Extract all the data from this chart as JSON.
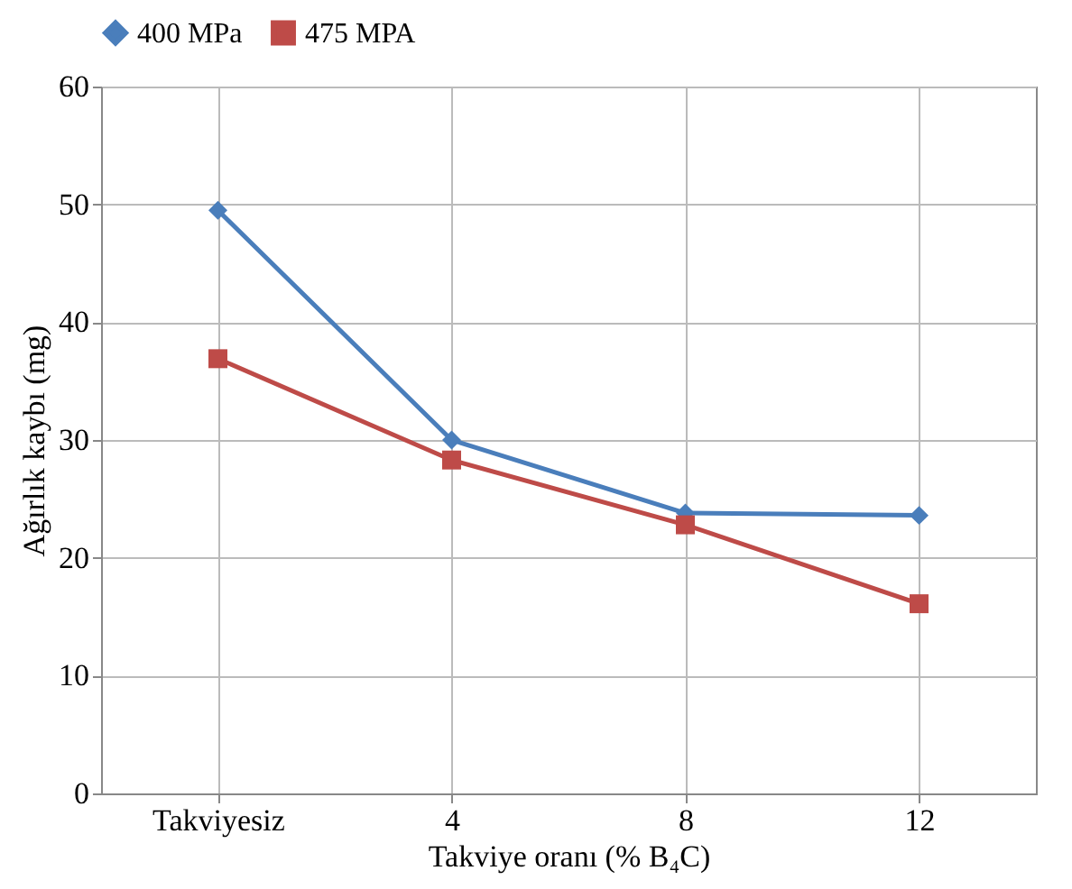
{
  "chart_data": {
    "type": "line",
    "xlabel": "Takviye oranı (% B₄C)",
    "ylabel": "Ağırlık kaybı (mg)",
    "categories": [
      "Takviyesiz",
      "4",
      "8",
      "12"
    ],
    "series": [
      {
        "name": "400 MPa",
        "color": "#4a7ebb",
        "marker": "diamond",
        "values": [
          49.5,
          30.0,
          23.8,
          23.6
        ]
      },
      {
        "name": "475 MPA",
        "color": "#be4b48",
        "marker": "square",
        "values": [
          36.9,
          28.3,
          22.8,
          16.1
        ]
      }
    ],
    "ylim": [
      0,
      60
    ],
    "yticks": [
      0,
      10,
      20,
      30,
      40,
      50,
      60
    ],
    "grid": true,
    "legend": "top",
    "line_style": "solid"
  }
}
